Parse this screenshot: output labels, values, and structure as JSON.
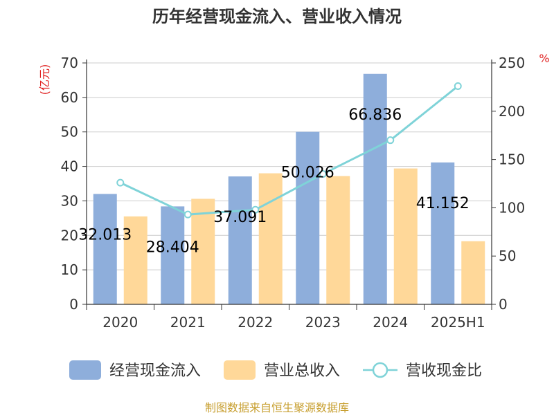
{
  "chart_data": {
    "type": "bar",
    "title": "历年经营现金流入、营业收入情况",
    "left_unit": "(亿元)",
    "right_unit": "%",
    "categories": [
      "2020",
      "2021",
      "2022",
      "2023",
      "2024",
      "2025H1"
    ],
    "series": [
      {
        "name": "经营现金流入",
        "type": "bar",
        "axis": "left",
        "values": [
          32.013,
          28.404,
          37.091,
          50.026,
          66.836,
          41.152
        ],
        "labels": [
          "32.013",
          "28.404",
          "37.091",
          "50.026",
          "66.836",
          "41.152"
        ]
      },
      {
        "name": "营业总收入",
        "type": "bar",
        "axis": "left",
        "values": [
          25.5,
          30.6,
          38.0,
          37.2,
          39.4,
          18.3
        ]
      },
      {
        "name": "营收现金比",
        "type": "line",
        "axis": "right",
        "values": [
          126,
          93,
          98,
          135,
          170,
          226
        ]
      }
    ],
    "ylim_left": [
      0,
      70
    ],
    "yticks_left": [
      0,
      10,
      20,
      30,
      40,
      50,
      60,
      70
    ],
    "ylim_right": [
      0,
      250
    ],
    "yticks_right": [
      0,
      50,
      100,
      150,
      200,
      250
    ],
    "grid": true,
    "legend_position": "bottom",
    "colors": {
      "bar1": "#8eaedb",
      "bar2": "#ffd899",
      "line": "#7fd3d8"
    },
    "source": "制图数据来自恒生聚源数据库"
  }
}
